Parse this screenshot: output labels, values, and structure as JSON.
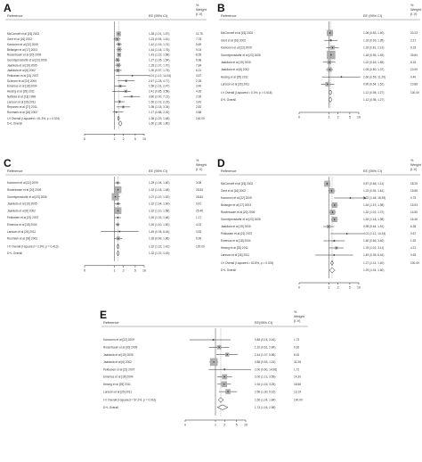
{
  "panels": [
    {
      "label": "A",
      "ee_label": "EE (95% CI)",
      "weight_label": [
        "%",
        "Weight",
        "(I-V)"
      ],
      "axis_ticks": [
        "0",
        "1",
        "2",
        "5",
        "10"
      ],
      "studies": [
        {
          "name": "McConnell et al [15] 2002",
          "ee": "1.38 (1.21, 1.57)",
          "w": "11.75",
          "est": 1.38,
          "lo": 1.21,
          "hi": 1.57,
          "wt": 11.75
        },
        {
          "name": "Gent et al [16] 2002",
          "ee": "1.23 (0.94, 1.61)",
          "w": "7.78",
          "est": 1.23,
          "lo": 0.94,
          "hi": 1.61,
          "wt": 7.78
        },
        {
          "name": "Karvonen et al [22] 2009",
          "ee": "1.42 (1.16, 1.74)",
          "w": "5.69",
          "est": 1.42,
          "lo": 1.16,
          "hi": 1.74,
          "wt": 5.69
        },
        {
          "name": "Belanger et al [17] 2003",
          "ee": "1.44 (1.18, 1.76)",
          "w": "9.03",
          "est": 1.44,
          "lo": 1.18,
          "hi": 1.76,
          "wt": 9.03
        },
        {
          "name": "Rosenbaum et al [20] 2009",
          "ee": "1.43 (1.22, 1.68)",
          "w": "8.55",
          "est": 1.43,
          "lo": 1.22,
          "hi": 1.68,
          "wt": 8.55
        },
        {
          "name": "Gunnbjornsdottir et al [23] 2006",
          "ee": "1.27 (1.05, 1.54)",
          "w": "6.98",
          "est": 1.27,
          "lo": 1.05,
          "hi": 1.54,
          "wt": 6.98
        },
        {
          "name": "Jaakkola et al [19] 2005",
          "ee": "1.35 (1.07, 1.70)",
          "w": "7.84",
          "est": 1.35,
          "lo": 1.07,
          "hi": 1.7,
          "wt": 7.84
        },
        {
          "name": "Jaakkola et al [6] 2002",
          "ee": "1.30 (0.97, 1.75)",
          "w": "6.21",
          "est": 1.3,
          "lo": 0.97,
          "hi": 1.75,
          "wt": 6.21
        },
        {
          "name": "Pekkanen et al [21] 2007",
          "ee": "4.01 (1.12, 14.34)",
          "w": "0.67",
          "est": 4.01,
          "lo": 1.12,
          "hi": 14.34,
          "wt": 0.67
        },
        {
          "name": "Schrone et al [24] 2005",
          "ee": "2.47 (1.28, 4.77)",
          "w": "2.35",
          "est": 2.47,
          "lo": 1.28,
          "hi": 4.77,
          "wt": 2.35
        },
        {
          "name": "Emenius et al [18] 2004",
          "ee": "1.58 (1.01, 2.47)",
          "w": "3.40",
          "est": 1.58,
          "lo": 1.01,
          "hi": 2.47,
          "wt": 3.4
        },
        {
          "name": "Hesing et al [25] 2011",
          "ee": "2.41 (0.85, 3.58)",
          "w": "4.26",
          "est": 2.41,
          "lo": 0.85,
          "hi": 3.58,
          "wt": 4.26
        },
        {
          "name": "Nafstad et al [13] 1998",
          "ee": "3.80 (2.00, 7.21)",
          "w": "2.39",
          "est": 3.8,
          "lo": 2.0,
          "hi": 7.21,
          "wt": 2.39
        },
        {
          "name": "Larsson et al [26] 2011",
          "ee": "1.50 (1.01, 2.23)",
          "w": "3.42",
          "est": 1.5,
          "lo": 1.01,
          "hi": 2.23,
          "wt": 3.42
        },
        {
          "name": "Reponen et al [27] 2011",
          "ee": "1.98 (1.18, 3.34)",
          "w": "2.82",
          "est": 1.98,
          "lo": 1.18,
          "hi": 3.34,
          "wt": 2.82
        },
        {
          "name": "Ronmark et al [16] 2002",
          "ee": "1.17 (0.88, 2.00)",
          "w": "0.88",
          "est": 1.17,
          "lo": 0.88,
          "hi": 2.0,
          "wt": 0.88
        }
      ],
      "overall": [
        {
          "name": "I-V Overall  (I-squared = 61.3%, p = 0.001)",
          "ee": "1.38 (1.29, 1.48)",
          "w": "100.00",
          "est": 1.38,
          "lo": 1.29,
          "hi": 1.48
        },
        {
          "name": "D+L Overall",
          "ee": "1.60 (1.38, 1.80)",
          "w": "",
          "est": 1.6,
          "lo": 1.38,
          "hi": 1.8
        }
      ]
    },
    {
      "label": "B",
      "ee_label": "EE (95% CI)",
      "weight_label": [
        "%",
        "Weight",
        "(I-V)"
      ],
      "axis_ticks": [
        "0",
        "1",
        "2",
        "5",
        "10"
      ],
      "studies": [
        {
          "name": "McConnell et al [15] 2002",
          "ee": "1.08 (0.83, 1.40)",
          "w": "20.23",
          "est": 1.08,
          "lo": 0.83,
          "hi": 1.4,
          "wt": 20.23
        },
        {
          "name": "Gent et al [16] 2002",
          "ee": "1.16 (0.69, 1.95)",
          "w": "2.17",
          "est": 1.16,
          "lo": 0.69,
          "hi": 1.95,
          "wt": 2.17
        },
        {
          "name": "Karvonen et al [22] 2009",
          "ee": "1.32 (0.81, 2.13)",
          "w": "8.15",
          "est": 1.32,
          "lo": 0.81,
          "hi": 2.13,
          "wt": 8.15
        },
        {
          "name": "Gunnbjornsdottir et al [23] 2006",
          "ee": "1.18 (0.96, 1.45)",
          "w": "39.84",
          "est": 1.18,
          "lo": 0.96,
          "hi": 1.45,
          "wt": 39.84
        },
        {
          "name": "Jaakkola et al [19] 2005",
          "ee": "1.02 (0.63, 1.65)",
          "w": "8.15",
          "est": 1.02,
          "lo": 0.63,
          "hi": 1.65,
          "wt": 8.15
        },
        {
          "name": "Jaakkola et al [6] 2002",
          "ee": "1.05 (0.80, 1.37)",
          "w": "10.09",
          "est": 1.05,
          "lo": 0.8,
          "hi": 1.37,
          "wt": 10.09
        },
        {
          "name": "Hesing et al [25] 2011",
          "ee": "2.60 (0.59, 11.29)",
          "w": "0.49",
          "est": 2.6,
          "lo": 0.59,
          "hi": 11.29,
          "wt": 0.49
        },
        {
          "name": "Larsson et al [26] 2011",
          "ee": "0.90 (0.54, 1.51)",
          "w": "10.88",
          "est": 0.9,
          "lo": 0.54,
          "hi": 1.51,
          "wt": 10.88
        }
      ],
      "overall": [
        {
          "name": "I-V Overall  (I-squared = 0.0%, p = 0.618)",
          "ee": "1.12 (0.98, 1.27)",
          "w": "100.00",
          "est": 1.12,
          "lo": 0.98,
          "hi": 1.27
        },
        {
          "name": "D+L Overall",
          "ee": "1.12 (0.98, 1.27)",
          "w": "",
          "est": 1.12,
          "lo": 0.98,
          "hi": 1.27
        }
      ]
    },
    {
      "label": "C",
      "ee_label": "EE (95% CI)",
      "weight_label": [
        "%",
        "Weight",
        "(I-V)"
      ],
      "axis_ticks": [
        "0",
        "1",
        "2",
        "5",
        "10"
      ],
      "studies": [
        {
          "name": "Karvonen et al [22] 2009",
          "ee": "1.29 (1.04, 1.60)",
          "w": "3.08",
          "est": 1.29,
          "lo": 1.04,
          "hi": 1.6,
          "wt": 3.08
        },
        {
          "name": "Rosenbaum et al [20] 2009",
          "ee": "1.32 (1.18, 1.48)",
          "w": "25.55",
          "est": 1.32,
          "lo": 1.18,
          "hi": 1.48,
          "wt": 25.55
        },
        {
          "name": "Gunnbjornsdottir et al [23] 2006",
          "ee": "1.07 (1.22, 1.52)",
          "w": "28.84",
          "est": 1.07,
          "lo": 1.22,
          "hi": 1.52,
          "wt": 28.84
        },
        {
          "name": "Jaakkola et al [19] 2005",
          "ee": "1.32 (1.04, 1.60)",
          "w": "3.41",
          "est": 1.32,
          "lo": 1.04,
          "hi": 1.6,
          "wt": 3.41
        },
        {
          "name": "Jaakkola et al [6] 2002",
          "ee": "1.32 (1.10, 1.58)",
          "w": "25.46",
          "est": 1.32,
          "lo": 1.1,
          "hi": 1.58,
          "wt": 25.46
        },
        {
          "name": "Pekkanen et al [21] 2007",
          "ee": "1.30 (1.02, 1.66)",
          "w": "1.17",
          "est": 1.3,
          "lo": 1.02,
          "hi": 1.66,
          "wt": 1.17
        },
        {
          "name": "Emenius et al [18] 2004",
          "ee": "1.30 (1.10, 1.50)",
          "w": "4.02",
          "est": 1.3,
          "lo": 1.1,
          "hi": 1.5,
          "wt": 4.02
        },
        {
          "name": "Larsson et al [26] 2011",
          "ee": "1.49 (0.35, 6.44)",
          "w": "0.53",
          "est": 1.49,
          "lo": 0.35,
          "hi": 6.44,
          "wt": 0.53
        },
        {
          "name": "Ronmark et al [18] 2002",
          "ee": "1.35 (0.99, 1.86)",
          "w": "6.99",
          "est": 1.35,
          "lo": 0.99,
          "hi": 1.86,
          "wt": 6.99
        }
      ],
      "overall": [
        {
          "name": "I-V Overall  (I-squared = 2.9%, p = 0.413)",
          "ee": "1.32 (1.22, 1.42)",
          "w": "100.00",
          "est": 1.32,
          "lo": 1.22,
          "hi": 1.42
        },
        {
          "name": "D+L Overall",
          "ee": "1.32 (1.22, 1.43)",
          "w": "",
          "est": 1.32,
          "lo": 1.22,
          "hi": 1.43
        }
      ]
    },
    {
      "label": "D",
      "ee_label": "EE (95% CI)",
      "weight_label": [
        "%",
        "Weight",
        "(I-V)"
      ],
      "axis_ticks": [
        "0",
        "1",
        "2",
        "5",
        "10"
      ],
      "studies": [
        {
          "name": "McConnell et al [15] 2002",
          "ee": "0.87 (0.68, 1.11)",
          "w": "18.25",
          "est": 0.87,
          "lo": 0.68,
          "hi": 1.11,
          "wt": 18.25
        },
        {
          "name": "Gent et al [16] 2002",
          "ee": "1.23 (0.94, 1.61)",
          "w": "15.68",
          "est": 1.23,
          "lo": 0.94,
          "hi": 1.61,
          "wt": 15.68
        },
        {
          "name": "Karvonen et al [22] 2009",
          "ee": "5.22 (1.48, 18.39)",
          "w": "0.75",
          "est": 5.22,
          "lo": 1.48,
          "hi": 18.39,
          "wt": 0.75
        },
        {
          "name": "Belanger et al [17] 2003",
          "ee": "1.54 (1.19, 1.98)",
          "w": "15.93",
          "est": 1.54,
          "lo": 1.19,
          "hi": 1.98,
          "wt": 15.93
        },
        {
          "name": "Rosenbaum et al [20] 2009",
          "ee": "1.32 (1.02, 1.72)",
          "w": "14.55",
          "est": 1.32,
          "lo": 1.02,
          "hi": 1.72,
          "wt": 14.55
        },
        {
          "name": "Gunnbjornsdottir et al [23] 2006",
          "ee": "1.53 (1.18, 1.98)",
          "w": "16.46",
          "est": 1.53,
          "lo": 1.18,
          "hi": 1.98,
          "wt": 16.46
        },
        {
          "name": "Jaakkola et al [19] 2005",
          "ee": "0.98 (0.64, 1.51)",
          "w": "6.35",
          "est": 0.98,
          "lo": 0.64,
          "hi": 1.51,
          "wt": 6.35
        },
        {
          "name": "Pekkanen et al [21] 2007",
          "ee": "4.01 (1.12, 14.34)",
          "w": "0.67",
          "est": 4.01,
          "lo": 1.12,
          "hi": 14.34,
          "wt": 0.67
        },
        {
          "name": "Emenius et al [18] 2004",
          "ee": "1.50 (0.66, 3.40)",
          "w": "1.92",
          "est": 1.5,
          "lo": 0.66,
          "hi": 3.4,
          "wt": 1.92
        },
        {
          "name": "Hesing et al [25] 2011",
          "ee": "1.78 (1.02, 3.11)",
          "w": "4.21",
          "est": 1.78,
          "lo": 1.02,
          "hi": 3.11,
          "wt": 4.21
        },
        {
          "name": "Larsson et al [26] 2011",
          "ee": "1.49 (0.35, 6.44)",
          "w": "0.53",
          "est": 1.49,
          "lo": 0.35,
          "hi": 6.44,
          "wt": 0.53
        }
      ],
      "overall": [
        {
          "name": "I-V Overall  (I-squared = 62.8%, p = 0.003)",
          "ee": "1.27 (1.14, 1.40)",
          "w": "100.00",
          "est": 1.27,
          "lo": 1.14,
          "hi": 1.4
        },
        {
          "name": "D+L Overall",
          "ee": "1.29 (1.04, 1.60)",
          "w": "",
          "est": 1.29,
          "lo": 1.04,
          "hi": 1.6
        }
      ]
    },
    {
      "label": "E",
      "ee_label": "EE(95% CI)",
      "weight_label": [
        "%",
        "Weight",
        "(I-V)"
      ],
      "axis_ticks": [
        "0",
        "1",
        "2",
        "5",
        "10"
      ],
      "studies": [
        {
          "name": "Karvonen et al [22] 2009",
          "ee": "0.85 (0.14, 3.16)",
          "w": "1.73",
          "est": 0.85,
          "lo": 0.14,
          "hi": 3.16,
          "wt": 1.73
        },
        {
          "name": "Rosenbaum et al [20] 2009",
          "ee": "1.32 (0.61, 2.84)",
          "w": "9.16",
          "est": 1.32,
          "lo": 0.61,
          "hi": 2.84,
          "wt": 9.16
        },
        {
          "name": "Jaakkola et al [19] 2005",
          "ee": "2.44 (1.07, 5.56)",
          "w": "8.15",
          "est": 2.44,
          "lo": 1.07,
          "hi": 5.56,
          "wt": 8.15
        },
        {
          "name": "Jaakkola et al [6] 2002",
          "ee": "0.88 (0.63, 1.24)",
          "w": "32.28",
          "est": 0.88,
          "lo": 0.63,
          "hi": 1.24,
          "wt": 32.28
        },
        {
          "name": "Pekkanen et al [21] 2007",
          "ee": "2.00 (0.60, 14.96)",
          "w": "1.72",
          "est": 2.0,
          "lo": 0.6,
          "hi": 14.96,
          "wt": 1.72
        },
        {
          "name": "Emenius et al [18] 2004",
          "ee": "2.00 (1.13, 3.55)",
          "w": "14.30",
          "est": 2.0,
          "lo": 1.13,
          "hi": 3.55,
          "wt": 14.3
        },
        {
          "name": "Hesing et al [25] 2011",
          "ee": "1.94 (1.16, 3.25)",
          "w": "18.56",
          "est": 1.94,
          "lo": 1.16,
          "hi": 3.25,
          "wt": 18.56
        },
        {
          "name": "Larsson et al [26] 2011",
          "ee": "2.59 (1.30, 5.16)",
          "w": "13.19",
          "est": 2.59,
          "lo": 1.3,
          "hi": 5.16,
          "wt": 13.19
        }
      ],
      "overall": [
        {
          "name": "I-V Overall  (I-squared = 57.2%, p = 0.016)",
          "ee": "1.50 (1.24, 1.84)",
          "w": "100.00",
          "est": 1.5,
          "lo": 1.24,
          "hi": 1.84
        },
        {
          "name": "D+L Overall",
          "ee": "1.73 (1.16, 2.58)",
          "w": "",
          "est": 1.73,
          "lo": 1.16,
          "hi": 2.58
        }
      ]
    }
  ],
  "chart_data": [
    {
      "type": "forest",
      "panel": "A",
      "x_scale": "log",
      "x_ticks": [
        0,
        1,
        2,
        5,
        10
      ],
      "null_line": 1
    },
    {
      "type": "forest",
      "panel": "B",
      "x_scale": "log",
      "x_ticks": [
        0,
        1,
        2,
        5,
        10
      ],
      "null_line": 1
    },
    {
      "type": "forest",
      "panel": "C",
      "x_scale": "log",
      "x_ticks": [
        0,
        1,
        2,
        5,
        10
      ],
      "null_line": 1
    },
    {
      "type": "forest",
      "panel": "D",
      "x_scale": "log",
      "x_ticks": [
        0,
        1,
        2,
        5,
        10
      ],
      "null_line": 1
    },
    {
      "type": "forest",
      "panel": "E",
      "x_scale": "log",
      "x_ticks": [
        0,
        1,
        2,
        5,
        10
      ],
      "null_line": 1
    }
  ]
}
